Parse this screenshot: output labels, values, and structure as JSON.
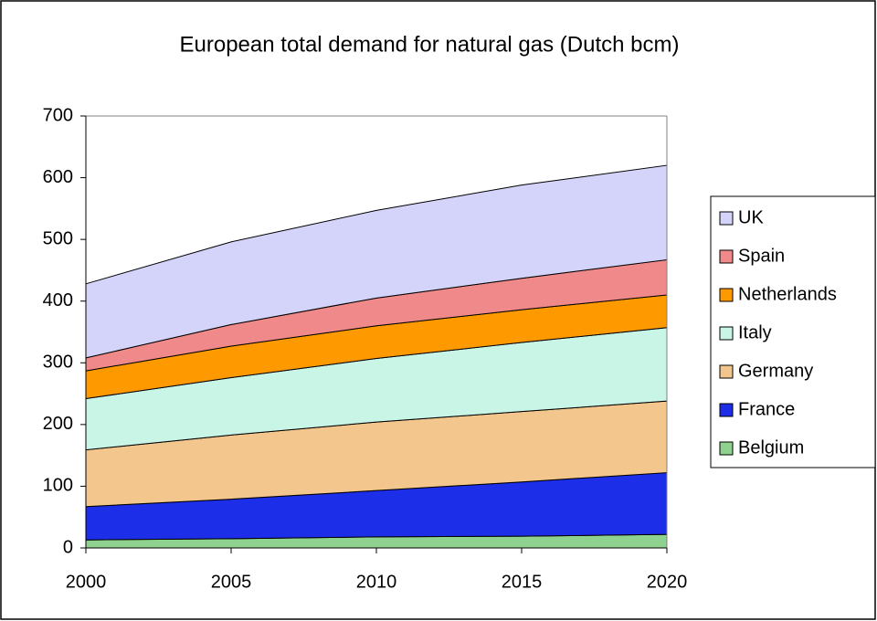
{
  "chart_data": {
    "type": "stacked_area",
    "title": "European total demand for natural gas (Dutch bcm)",
    "x": [
      2000,
      2005,
      2010,
      2015,
      2020
    ],
    "xlim": [
      2000,
      2020
    ],
    "xticks": [
      2000,
      2005,
      2010,
      2015,
      2020
    ],
    "ylim": [
      0,
      700
    ],
    "yticks": [
      0,
      100,
      200,
      300,
      400,
      500,
      600,
      700
    ],
    "legend": "right",
    "series": [
      {
        "name": "Belgium",
        "color": "#8fd18f",
        "values": [
          13,
          15,
          18,
          19,
          22
        ]
      },
      {
        "name": "France",
        "color": "#1c2ee8",
        "values": [
          54,
          64,
          75,
          88,
          100
        ]
      },
      {
        "name": "Germany",
        "color": "#f2c68c",
        "values": [
          92,
          104,
          111,
          114,
          116
        ]
      },
      {
        "name": "Italy",
        "color": "#c8f5e6",
        "values": [
          83,
          93,
          103,
          112,
          119
        ]
      },
      {
        "name": "Netherlands",
        "color": "#ff9900",
        "values": [
          45,
          51,
          53,
          53,
          53
        ]
      },
      {
        "name": "Spain",
        "color": "#f08a8a",
        "values": [
          21,
          35,
          45,
          51,
          57
        ]
      },
      {
        "name": "UK",
        "color": "#d4d4fa",
        "values": [
          120,
          134,
          142,
          151,
          153
        ]
      }
    ]
  }
}
